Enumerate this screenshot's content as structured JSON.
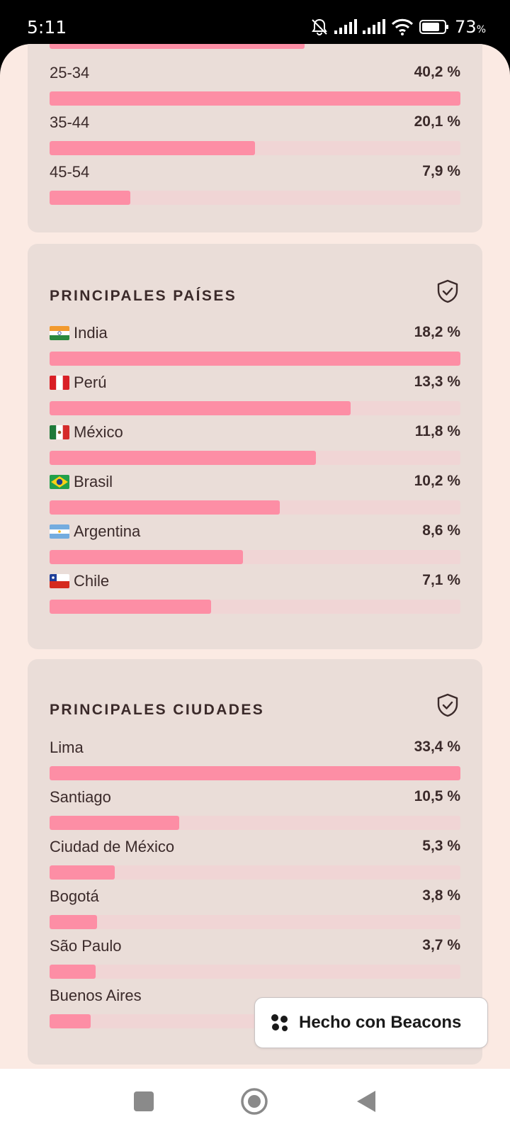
{
  "status": {
    "time": "5:11",
    "battery": "73",
    "battery_unit": "%"
  },
  "age_card": {
    "rows": [
      {
        "label": "25-34",
        "value": "40,2 %",
        "fill": 1.0
      },
      {
        "label": "35-44",
        "value": "20,1 %",
        "fill": 0.5
      },
      {
        "label": "45-54",
        "value": "7,9 %",
        "fill": 0.196
      }
    ],
    "partial_bar_fill": 0.62
  },
  "countries_card": {
    "title": "PRINCIPALES PAÍSES",
    "rows": [
      {
        "label": "India",
        "flag": "india",
        "value": "18,2 %",
        "fill": 1.0
      },
      {
        "label": "Perú",
        "flag": "peru",
        "value": "13,3 %",
        "fill": 0.733
      },
      {
        "label": "México",
        "flag": "mexico",
        "value": "11,8 %",
        "fill": 0.648
      },
      {
        "label": "Brasil",
        "flag": "brazil",
        "value": "10,2 %",
        "fill": 0.561
      },
      {
        "label": "Argentina",
        "flag": "argentina",
        "value": "8,6 %",
        "fill": 0.47
      },
      {
        "label": "Chile",
        "flag": "chile",
        "value": "7,1 %",
        "fill": 0.393
      }
    ]
  },
  "cities_card": {
    "title": "PRINCIPALES CIUDADES",
    "rows": [
      {
        "label": "Lima",
        "value": "33,4 %",
        "fill": 1.0
      },
      {
        "label": "Santiago",
        "value": "10,5 %",
        "fill": 0.315
      },
      {
        "label": "Ciudad de México",
        "value": "5,3 %",
        "fill": 0.159
      },
      {
        "label": "Bogotá",
        "value": "3,8 %",
        "fill": 0.116
      },
      {
        "label": "São Paulo",
        "value": "3,7 %",
        "fill": 0.112
      },
      {
        "label": "Buenos Aires",
        "value": "",
        "fill": 0.1
      }
    ]
  },
  "badge": {
    "label": "Hecho con Beacons"
  },
  "colors": {
    "bar_fill": "#fd8ea5",
    "bar_track": "#f0d5d5",
    "card_bg": "#eaddd8",
    "page_bg": "#fbeae3"
  },
  "icons": {
    "shield": "shield-check-icon",
    "beacons_logo": "beacons-logo-icon",
    "nav_recents": "square-icon",
    "nav_home": "circle-icon",
    "nav_back": "triangle-back-icon"
  }
}
